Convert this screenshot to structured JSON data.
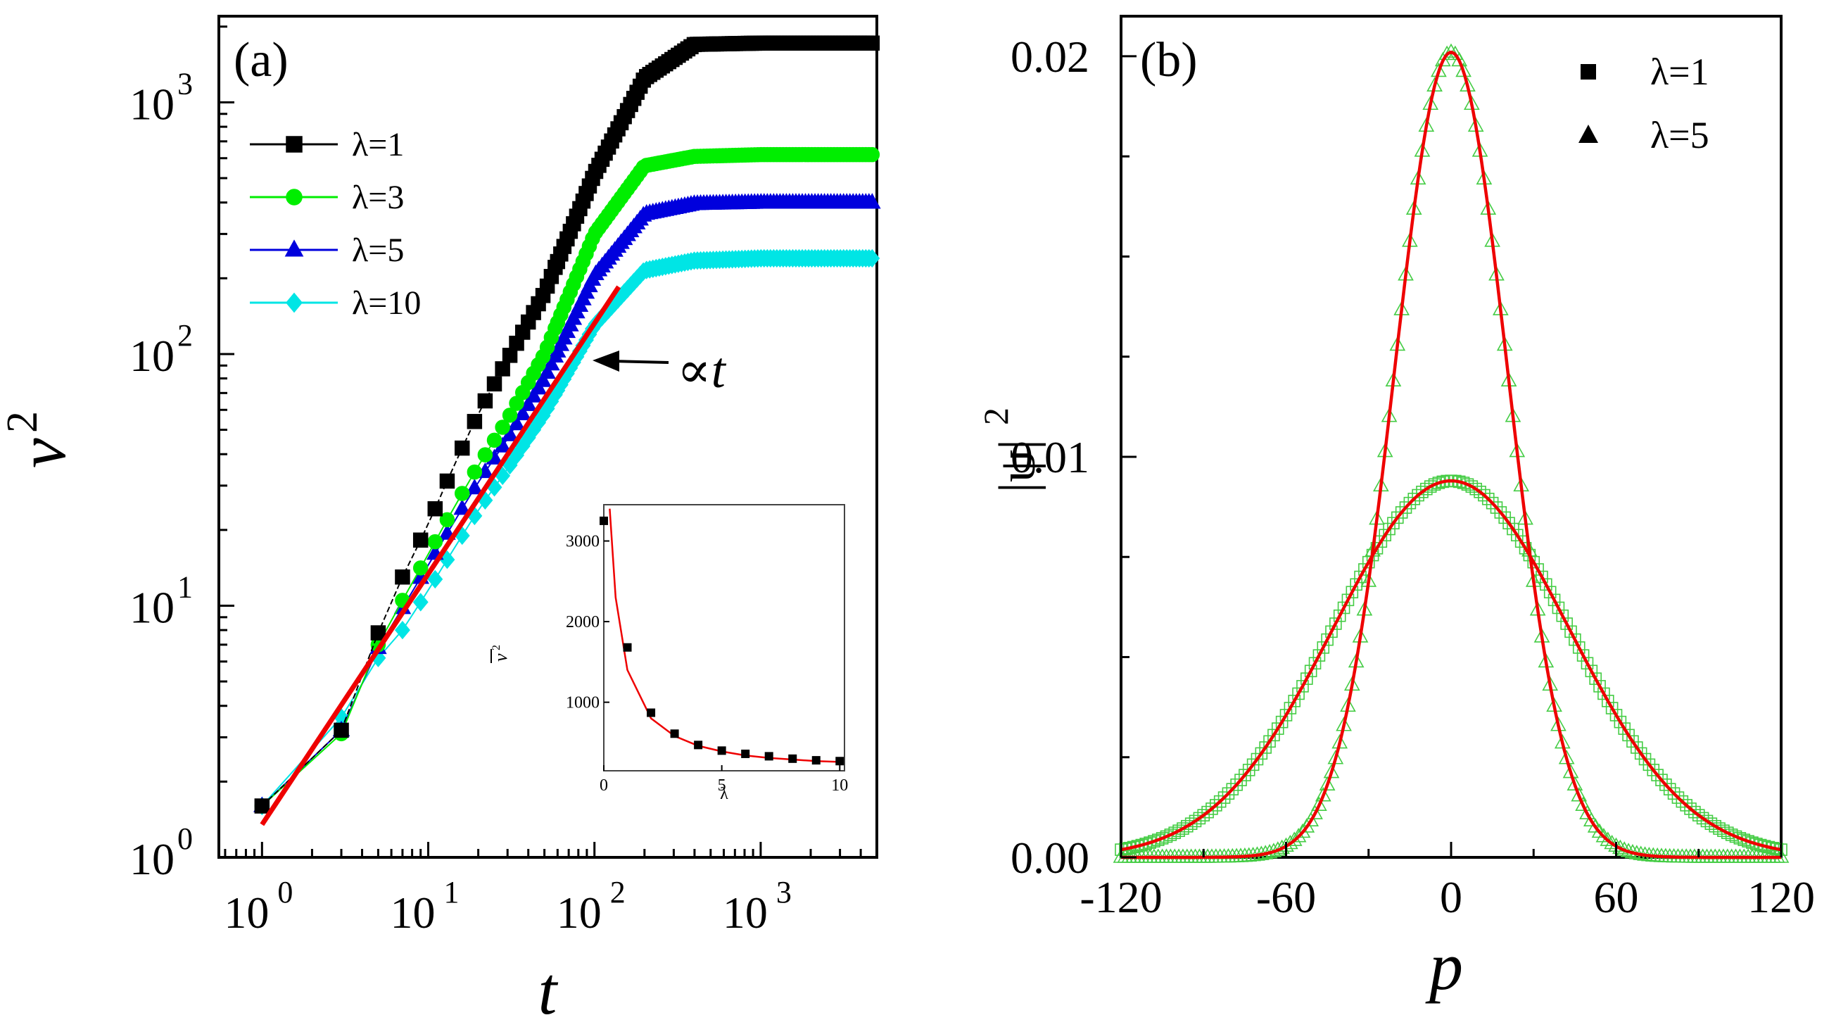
{
  "chart_data": [
    {
      "panel_label": "(a)",
      "type": "line",
      "xlabel": "t",
      "ylabel": "ν",
      "ylabel_superscript": "2",
      "xscale": "log",
      "yscale": "log",
      "xlim": [
        0.55,
        5000
      ],
      "ylim": [
        1,
        2200
      ],
      "x_ticks": [
        {
          "base": "10",
          "exp": "0"
        },
        {
          "base": "10",
          "exp": "1"
        },
        {
          "base": "10",
          "exp": "2"
        },
        {
          "base": "10",
          "exp": "3"
        }
      ],
      "y_ticks": [
        {
          "base": "10",
          "exp": "0"
        },
        {
          "base": "10",
          "exp": "1"
        },
        {
          "base": "10",
          "exp": "2"
        },
        {
          "base": "10",
          "exp": "3"
        }
      ],
      "legend_position": "top-left",
      "series": [
        {
          "name": "λ=1",
          "color": "#000000",
          "marker": "square",
          "x": [
            1,
            3,
            5,
            7,
            10,
            14,
            20,
            30,
            50,
            100,
            200,
            400,
            1000,
            5000
          ],
          "y": [
            1.6,
            3.2,
            7.8,
            13,
            21,
            35,
            58,
            95,
            175,
            520,
            1250,
            1700,
            1720,
            1720
          ]
        },
        {
          "name": "λ=3",
          "color": "#00ee00",
          "marker": "circle",
          "x": [
            1,
            3,
            5,
            7,
            10,
            14,
            20,
            30,
            50,
            100,
            200,
            400,
            1000,
            5000
          ],
          "y": [
            1.6,
            3.1,
            7,
            10.5,
            16,
            24,
            36,
            55,
            100,
            300,
            560,
            610,
            620,
            620
          ]
        },
        {
          "name": "λ=5",
          "color": "#0000dd",
          "marker": "triangle",
          "x": [
            1,
            3,
            5,
            7,
            10,
            14,
            20,
            30,
            50,
            100,
            200,
            400,
            1000,
            5000
          ],
          "y": [
            1.6,
            3.2,
            6.8,
            9.8,
            14.5,
            21,
            31,
            46,
            80,
            205,
            360,
            395,
            400,
            400
          ]
        },
        {
          "name": "λ=10",
          "color": "#00e5e5",
          "marker": "diamond",
          "x": [
            1,
            3,
            5,
            7,
            10,
            14,
            20,
            30,
            50,
            100,
            200,
            400,
            1000,
            5000
          ],
          "y": [
            1.6,
            3.6,
            6.2,
            8,
            11.5,
            16.5,
            24,
            35,
            58,
            130,
            215,
            235,
            240,
            240
          ]
        }
      ],
      "fit_line": {
        "color": "#ee0000",
        "x": [
          1,
          140
        ],
        "y": [
          1.35,
          185
        ]
      },
      "annotation": {
        "text": "∝t"
      },
      "inset": {
        "xlabel": "λ",
        "ylabel": "ν",
        "ylabel_superscript": "2",
        "xlim": [
          0,
          10.2
        ],
        "ylim": [
          150,
          3450
        ],
        "x_ticks": [
          "0",
          "5",
          "10"
        ],
        "y_ticks": [
          "1000",
          "2000",
          "3000"
        ],
        "points": {
          "x": [
            0,
            1,
            2,
            3,
            4,
            5,
            6,
            7,
            8,
            9,
            10
          ],
          "y": [
            3250,
            1680,
            870,
            610,
            470,
            400,
            360,
            330,
            300,
            280,
            270
          ]
        },
        "curve": {
          "x": [
            0.25,
            0.5,
            1,
            2,
            3,
            4,
            5,
            6,
            7,
            8,
            9,
            10
          ],
          "y": [
            3400,
            2300,
            1400,
            800,
            580,
            460,
            390,
            340,
            310,
            290,
            270,
            260
          ]
        }
      }
    },
    {
      "panel_label": "(b)",
      "type": "scatter",
      "xlabel": "p",
      "ylabel": "|ψ|",
      "ylabel_superscript": "2",
      "xlim": [
        -120,
        120
      ],
      "ylim": [
        0,
        0.021
      ],
      "x_ticks": [
        "-120",
        "-60",
        "0",
        "60",
        "120"
      ],
      "y_ticks": [
        "0.00",
        "0.01",
        "0.02"
      ],
      "legend_position": "top-right",
      "series": [
        {
          "name": "λ=1",
          "marker": "square",
          "legend_color": "#000000",
          "color": "#44cc44",
          "peak": 0.0094,
          "width": 43
        },
        {
          "name": "λ=5",
          "marker": "triangle",
          "legend_color": "#000000",
          "color": "#44cc44",
          "peak": 0.0201,
          "width": 20.5
        }
      ],
      "fit_curves": {
        "color": "#ee0000"
      }
    }
  ]
}
